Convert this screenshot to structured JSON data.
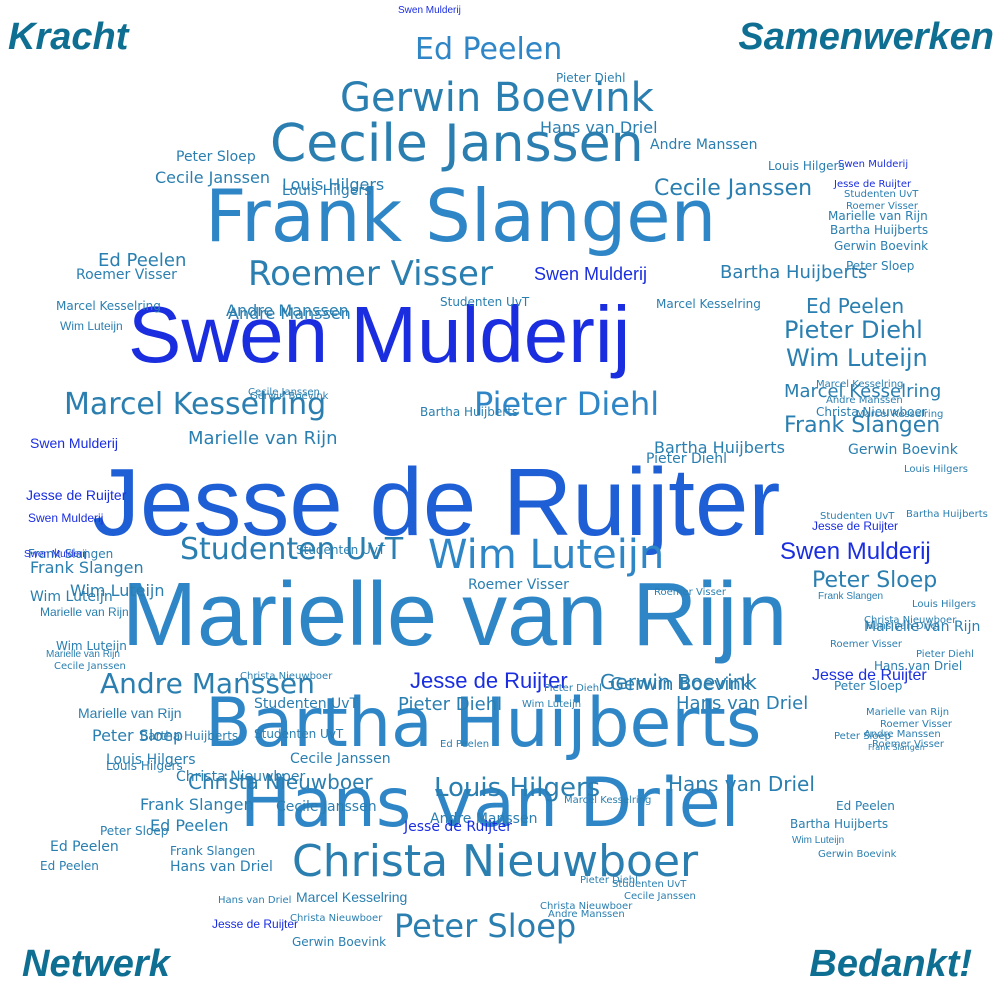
{
  "corners": {
    "top_left": "Kracht",
    "top_right": "Samenwerken",
    "bottom_left": "Netwerk",
    "bottom_right": "Bedankt!"
  },
  "colors": {
    "corner_text": "#0f6f93",
    "light_blue": "#2f86c6",
    "mid_blue": "#1e5fd6",
    "deep_blue": "#1a2ee0",
    "teal": "#2a7fb0"
  },
  "words": [
    {
      "text": "Jesse de Ruijter",
      "color": "#1e5fd6"
    },
    {
      "text": "Swen Mulderij",
      "color": "#1a2ee0"
    },
    {
      "text": "Marielle van Rijn",
      "color": "#2f86c6"
    },
    {
      "text": "Frank Slangen",
      "color": "#2f86c6"
    },
    {
      "text": "Bartha Huijberts",
      "color": "#2f86c6"
    },
    {
      "text": "Hans van Driel",
      "color": "#2f86c6"
    },
    {
      "text": "Cecile Janssen",
      "color": "#2a7fb0"
    },
    {
      "text": "Christa Nieuwboer",
      "color": "#2a7fb0"
    },
    {
      "text": "Gerwin Boevink",
      "color": "#2a7fb0"
    },
    {
      "text": "Ed Peelen",
      "color": "#2f86c6"
    },
    {
      "text": "Roemer Visser",
      "color": "#2a7fb0"
    },
    {
      "text": "Marcel Kesselring",
      "color": "#2a7fb0"
    },
    {
      "text": "Pieter Diehl",
      "color": "#2f86c6"
    },
    {
      "text": "Studenten UvT",
      "color": "#2a7fb0"
    },
    {
      "text": "Wim Luteijn",
      "color": "#2f86c6"
    },
    {
      "text": "Peter Sloep",
      "color": "#2a7fb0"
    },
    {
      "text": "Andre Manssen",
      "color": "#2a7fb0"
    },
    {
      "text": "Louis Hilgers",
      "color": "#2a7fb0"
    },
    {
      "text": "Swen Mulderij",
      "color": "#1a2ee0"
    },
    {
      "text": "Jesse de Ruijter",
      "color": "#1a2ee0"
    },
    {
      "text": "Ed Peelen",
      "color": "#2a7fb0"
    },
    {
      "text": "Pieter Diehl",
      "color": "#2a7fb0"
    },
    {
      "text": "Wim Luteijn",
      "color": "#2a7fb0"
    },
    {
      "text": "Marcel Kesselring",
      "color": "#2a7fb0"
    },
    {
      "text": "Frank Slangen",
      "color": "#2a7fb0"
    },
    {
      "text": "Marielle van Rijn",
      "color": "#2a7fb0"
    },
    {
      "text": "Cecile Janssen",
      "color": "#2a7fb0"
    },
    {
      "text": "Bartha Huijberts",
      "color": "#2a7fb0"
    },
    {
      "text": "Roemer Visser",
      "color": "#2a7fb0"
    },
    {
      "text": "Gerwin Boevink",
      "color": "#2a7fb0"
    },
    {
      "text": "Louis Hilgers",
      "color": "#2a7fb0"
    },
    {
      "text": "Peter Sloep",
      "color": "#2a7fb0"
    },
    {
      "text": "Studenten UvT",
      "color": "#2a7fb0"
    },
    {
      "text": "Andre Manssen",
      "color": "#2a7fb0"
    },
    {
      "text": "Hans van Driel",
      "color": "#2a7fb0"
    },
    {
      "text": "Christa Nieuwboer",
      "color": "#2a7fb0"
    },
    {
      "text": "Swen Mulderij",
      "color": "#1a2ee0"
    },
    {
      "text": "Jesse de Ruijter",
      "color": "#1a2ee0"
    },
    {
      "text": "Frank Slangen",
      "color": "#2a7fb0"
    },
    {
      "text": "Hans van Driel",
      "color": "#2a7fb0"
    },
    {
      "text": "Ed Peelen",
      "color": "#2a7fb0"
    },
    {
      "text": "Wim Luteijn",
      "color": "#2a7fb0"
    },
    {
      "text": "Marielle van Rijn",
      "color": "#2a7fb0"
    },
    {
      "text": "Peter Sloep",
      "color": "#2a7fb0"
    },
    {
      "text": "Louis Hilgers",
      "color": "#2a7fb0"
    },
    {
      "text": "Cecile Janssen",
      "color": "#2a7fb0"
    },
    {
      "text": "Pieter Diehl",
      "color": "#2a7fb0"
    },
    {
      "text": "Gerwin Boevink",
      "color": "#2a7fb0"
    },
    {
      "text": "Bartha Huijberts",
      "color": "#2a7fb0"
    },
    {
      "text": "Studenten UvT",
      "color": "#2a7fb0"
    },
    {
      "text": "Andre Manssen",
      "color": "#2a7fb0"
    },
    {
      "text": "Roemer Visser",
      "color": "#2a7fb0"
    },
    {
      "text": "Christa Nieuwboer",
      "color": "#2a7fb0"
    },
    {
      "text": "Marcel Kesselring",
      "color": "#2a7fb0"
    },
    {
      "text": "Swen Mulderij",
      "color": "#1a2ee0"
    },
    {
      "text": "Jesse de Ruijter",
      "color": "#1a2ee0"
    },
    {
      "text": "Ed Peelen",
      "color": "#2a7fb0"
    },
    {
      "text": "Frank Slangen",
      "color": "#2a7fb0"
    },
    {
      "text": "Wim Luteijn",
      "color": "#2a7fb0"
    },
    {
      "text": "Marielle van Rijn",
      "color": "#2a7fb0"
    },
    {
      "text": "Cecile Janssen",
      "color": "#2a7fb0"
    },
    {
      "text": "Hans van Driel",
      "color": "#2a7fb0"
    },
    {
      "text": "Louis Hilgers",
      "color": "#2a7fb0"
    },
    {
      "text": "Peter Sloep",
      "color": "#2a7fb0"
    },
    {
      "text": "Pieter Diehl",
      "color": "#2a7fb0"
    },
    {
      "text": "Bartha Huijberts",
      "color": "#2a7fb0"
    },
    {
      "text": "Gerwin Boevink",
      "color": "#2a7fb0"
    },
    {
      "text": "Studenten UvT",
      "color": "#2a7fb0"
    },
    {
      "text": "Andre Manssen",
      "color": "#2a7fb0"
    },
    {
      "text": "Christa Nieuwboer",
      "color": "#2a7fb0"
    },
    {
      "text": "Roemer Visser",
      "color": "#2a7fb0"
    },
    {
      "text": "Marcel Kesselring",
      "color": "#2a7fb0"
    },
    {
      "text": "Swen Mulderij",
      "color": "#1a2ee0"
    },
    {
      "text": "Jesse de Ruijter",
      "color": "#1a2ee0"
    },
    {
      "text": "Ed Peelen",
      "color": "#2a7fb0"
    },
    {
      "text": "Frank Slangen",
      "color": "#2a7fb0"
    },
    {
      "text": "Wim Luteijn",
      "color": "#2a7fb0"
    },
    {
      "text": "Marielle van Rijn",
      "color": "#2a7fb0"
    },
    {
      "text": "Cecile Janssen",
      "color": "#2a7fb0"
    },
    {
      "text": "Hans van Driel",
      "color": "#2a7fb0"
    },
    {
      "text": "Louis Hilgers",
      "color": "#2a7fb0"
    },
    {
      "text": "Peter Sloep",
      "color": "#2a7fb0"
    },
    {
      "text": "Pieter Diehl",
      "color": "#2a7fb0"
    },
    {
      "text": "Bartha Huijberts",
      "color": "#2a7fb0"
    },
    {
      "text": "Gerwin Boevink",
      "color": "#2a7fb0"
    },
    {
      "text": "Studenten UvT",
      "color": "#2a7fb0"
    },
    {
      "text": "Andre Manssen",
      "color": "#2a7fb0"
    },
    {
      "text": "Christa Nieuwboer",
      "color": "#2a7fb0"
    },
    {
      "text": "Roemer Visser",
      "color": "#2a7fb0"
    },
    {
      "text": "Marcel Kesselring",
      "color": "#2a7fb0"
    },
    {
      "text": "Swen Mulderij",
      "color": "#1a2ee0"
    },
    {
      "text": "Jesse de Ruijter",
      "color": "#1a2ee0"
    },
    {
      "text": "Ed Peelen",
      "color": "#2a7fb0"
    },
    {
      "text": "Frank Slangen",
      "color": "#2a7fb0"
    },
    {
      "text": "Wim Luteijn",
      "color": "#2a7fb0"
    },
    {
      "text": "Marielle van Rijn",
      "color": "#2a7fb0"
    },
    {
      "text": "Cecile Janssen",
      "color": "#2a7fb0"
    },
    {
      "text": "Hans van Driel",
      "color": "#2a7fb0"
    },
    {
      "text": "Louis Hilgers",
      "color": "#2a7fb0"
    },
    {
      "text": "Peter Sloep",
      "color": "#2a7fb0"
    },
    {
      "text": "Pieter Diehl",
      "color": "#2a7fb0"
    },
    {
      "text": "Bartha Huijberts",
      "color": "#2a7fb0"
    },
    {
      "text": "Gerwin Boevink",
      "color": "#2a7fb0"
    },
    {
      "text": "Studenten UvT",
      "color": "#2a7fb0"
    },
    {
      "text": "Andre Manssen",
      "color": "#2a7fb0"
    },
    {
      "text": "Christa Nieuwboer",
      "color": "#2a7fb0"
    },
    {
      "text": "Roemer Visser",
      "color": "#2a7fb0"
    },
    {
      "text": "Marcel Kesselring",
      "color": "#2a7fb0"
    },
    {
      "text": "Swen Mulderij",
      "color": "#1a2ee0"
    },
    {
      "text": "Jesse de Ruijter",
      "color": "#1a2ee0"
    },
    {
      "text": "Ed Peelen",
      "color": "#2a7fb0"
    },
    {
      "text": "Frank Slangen",
      "color": "#2a7fb0"
    },
    {
      "text": "Wim Luteijn",
      "color": "#2a7fb0"
    },
    {
      "text": "Marielle van Rijn",
      "color": "#2a7fb0"
    },
    {
      "text": "Cecile Janssen",
      "color": "#2a7fb0"
    },
    {
      "text": "Hans van Driel",
      "color": "#2a7fb0"
    },
    {
      "text": "Louis Hilgers",
      "color": "#2a7fb0"
    },
    {
      "text": "Peter Sloep",
      "color": "#2a7fb0"
    },
    {
      "text": "Pieter Diehl",
      "color": "#2a7fb0"
    },
    {
      "text": "Bartha Huijberts",
      "color": "#2a7fb0"
    },
    {
      "text": "Gerwin Boevink",
      "color": "#2a7fb0"
    },
    {
      "text": "Studenten UvT",
      "color": "#2a7fb0"
    },
    {
      "text": "Andre Manssen",
      "color": "#2a7fb0"
    },
    {
      "text": "Christa Nieuwboer",
      "color": "#2a7fb0"
    },
    {
      "text": "Roemer Visser",
      "color": "#2a7fb0"
    },
    {
      "text": "Marcel Kesselring",
      "color": "#2a7fb0"
    },
    {
      "text": "Swen Mulderij",
      "color": "#1a2ee0"
    },
    {
      "text": "Jesse de Ruijter",
      "color": "#1a2ee0"
    },
    {
      "text": "Ed Peelen",
      "color": "#2a7fb0"
    },
    {
      "text": "Frank Slangen",
      "color": "#2a7fb0"
    },
    {
      "text": "Wim Luteijn",
      "color": "#2a7fb0"
    },
    {
      "text": "Marielle van Rijn",
      "color": "#2a7fb0"
    },
    {
      "text": "Cecile Janssen",
      "color": "#2a7fb0"
    },
    {
      "text": "Hans van Driel",
      "color": "#2a7fb0"
    },
    {
      "text": "Louis Hilgers",
      "color": "#2a7fb0"
    },
    {
      "text": "Peter Sloep",
      "color": "#2a7fb0"
    },
    {
      "text": "Pieter Diehl",
      "color": "#2a7fb0"
    },
    {
      "text": "Bartha Huijberts",
      "color": "#2a7fb0"
    },
    {
      "text": "Gerwin Boevink",
      "color": "#2a7fb0"
    },
    {
      "text": "Studenten UvT",
      "color": "#2a7fb0"
    },
    {
      "text": "Andre Manssen",
      "color": "#2a7fb0"
    },
    {
      "text": "Christa Nieuwboer",
      "color": "#2a7fb0"
    },
    {
      "text": "Roemer Visser",
      "color": "#2a7fb0"
    },
    {
      "text": "Marcel Kesselring",
      "color": "#2a7fb0"
    }
  ]
}
